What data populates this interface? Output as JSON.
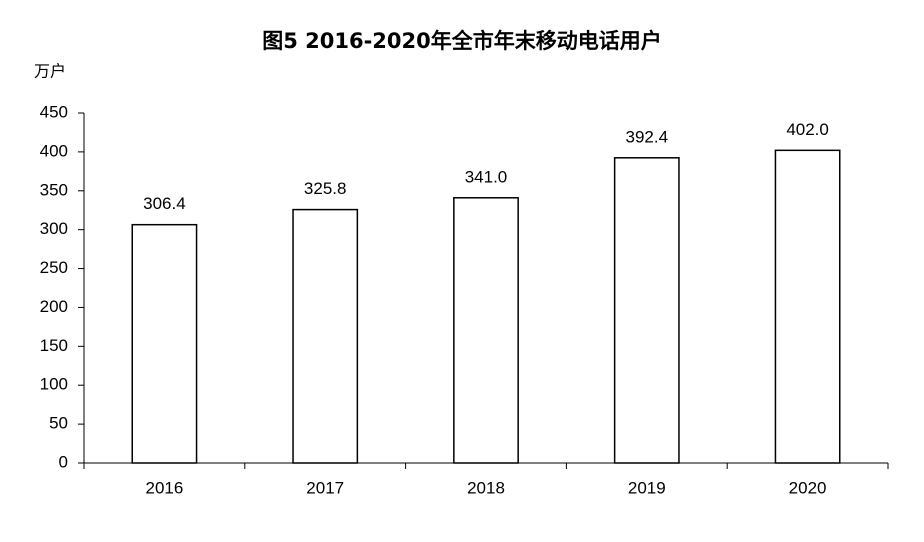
{
  "chart_data": {
    "type": "bar",
    "title": "图5 2016-2020年全市年末移动电话用户",
    "y_label": "万户",
    "categories": [
      "2016",
      "2017",
      "2018",
      "2019",
      "2020"
    ],
    "values": [
      306.4,
      325.8,
      341.0,
      392.4,
      402.0
    ],
    "value_labels": [
      "306.4",
      "325.8",
      "341.0",
      "392.4",
      "402.0"
    ],
    "color": "#ffffff",
    "ylim": [
      0,
      450
    ],
    "yticks": [
      0,
      50,
      100,
      150,
      200,
      250,
      300,
      350,
      400,
      450
    ],
    "grid": false
  }
}
